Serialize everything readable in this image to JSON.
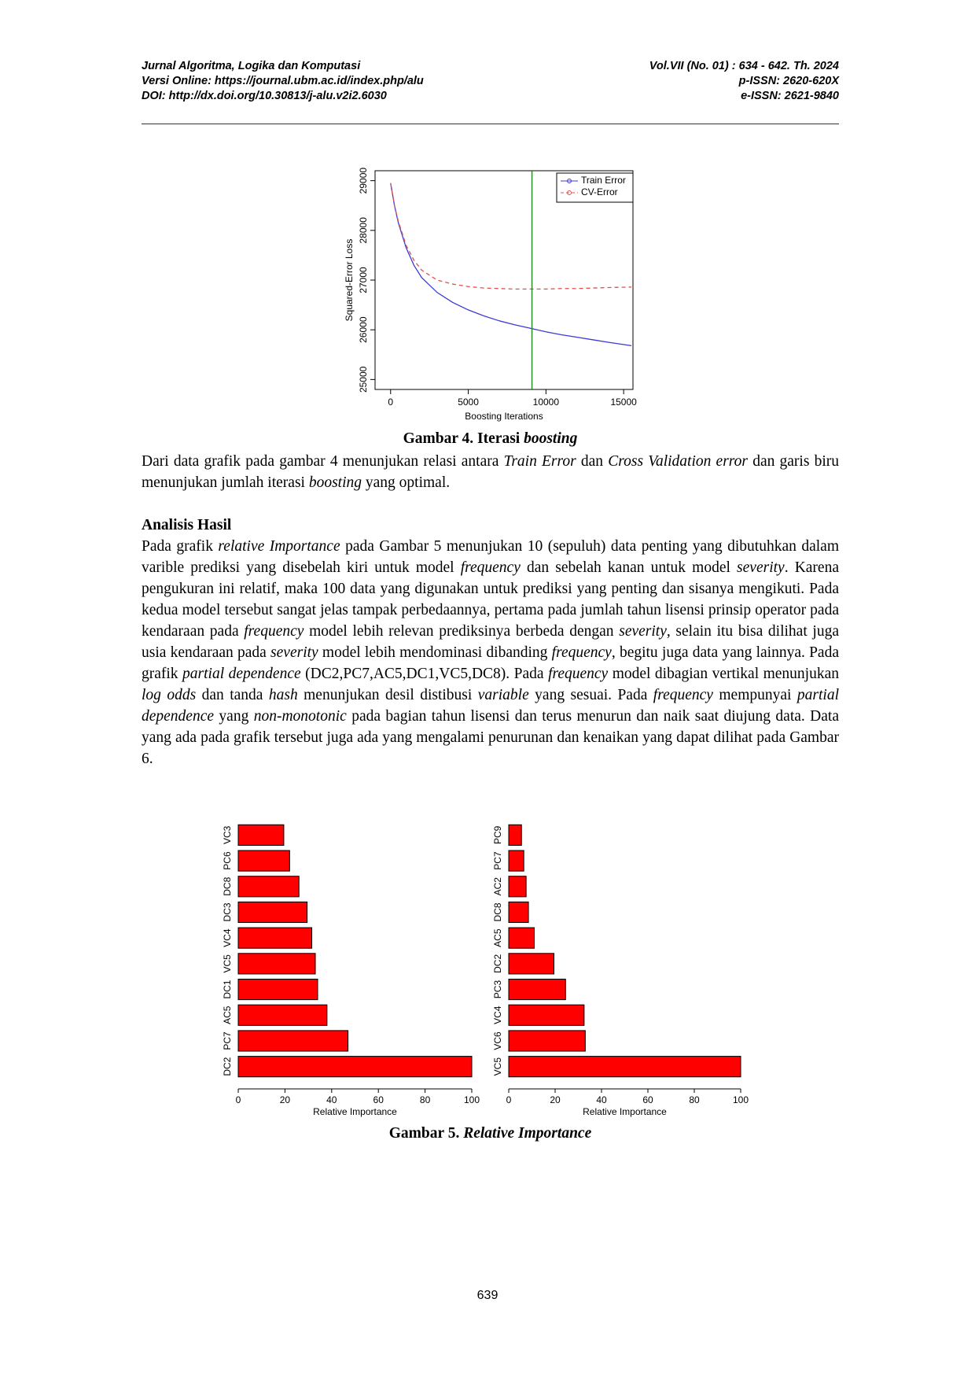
{
  "header": {
    "left": [
      "Jurnal Algoritma, Logika dan Komputasi",
      "Versi Online: https://journal.ubm.ac.id/index.php/alu",
      "DOI: http://dx.doi.org/10.30813/j-alu.v2i2.6030"
    ],
    "right": [
      "Vol.VII (No. 01) : 634 - 642. Th. 2024",
      "p-ISSN: 2620-620X",
      "e-ISSN: 2621-9840"
    ]
  },
  "captions": [
    [
      "Gambar 4. Iterasi ",
      {
        "italic": "boosting"
      }
    ],
    [
      "Gambar 5. ",
      {
        "italic": "Relative Importance"
      }
    ]
  ],
  "heading": "Analisis Hasil",
  "paragraphs": [
    [
      "Dari data grafik pada gambar 4 menunjukan relasi antara ",
      {
        "italic": "Train Error"
      },
      " dan ",
      {
        "italic": "Cross Validation error"
      },
      " dan garis biru menunjukan jumlah iterasi ",
      {
        "italic": "boosting"
      },
      " yang optimal."
    ],
    [
      "Pada grafik ",
      {
        "italic": "relative Importance"
      },
      " pada Gambar 5 menunjukan 10 (sepuluh) data penting yang dibutuhkan dalam varible prediksi yang disebelah kiri untuk model ",
      {
        "italic": "frequency"
      },
      " dan sebelah kanan untuk model ",
      {
        "italic": "severity"
      },
      ". Karena pengukuran ini relatif, maka 100 data yang digunakan untuk prediksi yang penting dan sisanya mengikuti. Pada kedua model tersebut sangat jelas tampak perbedaannya, pertama pada jumlah tahun lisensi prinsip operator pada kendaraan pada ",
      {
        "italic": "frequency"
      },
      " model lebih relevan prediksinya berbeda dengan ",
      {
        "italic": "severity"
      },
      ", selain itu bisa dilihat juga usia kendaraan pada ",
      {
        "italic": "severity"
      },
      " model lebih mendominasi dibanding ",
      {
        "italic": "frequency"
      },
      ", begitu juga data yang lainnya. Pada grafik ",
      {
        "italic": "partial dependence"
      },
      " (DC2,PC7,AC5,DC1,VC5,DC8). Pada ",
      {
        "italic": "frequency"
      },
      " model dibagian vertikal menunjukan ",
      {
        "italic": "log odds"
      },
      " dan tanda ",
      {
        "italic": "hash"
      },
      " menunjukan desil distibusi ",
      {
        "italic": "variable"
      },
      " yang sesuai. Pada ",
      {
        "italic": "frequency"
      },
      " mempunyai ",
      {
        "italic": "partial dependence"
      },
      " yang ",
      {
        "italic": "non-monotonic"
      },
      " pada bagian tahun lisensi dan terus menurun dan naik saat diujung data. Data yang ada pada grafik tersebut juga ada yang mengalami penurunan dan kenaikan yang dapat dilihat pada Gambar 6."
    ]
  ],
  "page_number": "639",
  "chart_data": [
    {
      "type": "line",
      "x_label": "Boosting Iterations",
      "y_label": "Squared-Error Loss",
      "x": [
        0,
        250,
        500,
        1000,
        1500,
        2000,
        3000,
        4000,
        5000,
        6000,
        7000,
        8000,
        9000,
        10000,
        11000,
        12000,
        13000,
        14000,
        15500
      ],
      "series": [
        {
          "name": "Train Error",
          "color": "#3b3bd6",
          "line_style": "solid",
          "values": [
            28950,
            28500,
            28150,
            27650,
            27300,
            27050,
            26750,
            26550,
            26400,
            26280,
            26180,
            26100,
            26030,
            25960,
            25900,
            25850,
            25800,
            25750,
            25680
          ]
        },
        {
          "name": "CV-Error",
          "color": "#e05050",
          "line_style": "dashed",
          "values": [
            28950,
            28500,
            28180,
            27700,
            27400,
            27200,
            27000,
            26920,
            26870,
            26840,
            26830,
            26820,
            26820,
            26820,
            26830,
            26830,
            26840,
            26850,
            26860
          ]
        }
      ],
      "xlim": [
        -1000,
        15600
      ],
      "ylim": [
        24800,
        29200
      ],
      "xticks": [
        0,
        5000,
        10000,
        15000
      ],
      "yticks": [
        25000,
        26000,
        27000,
        28000,
        29000
      ],
      "vline": 9100,
      "vline_color": "#2a8a2a",
      "legend": "top-right"
    },
    {
      "type": "barh",
      "x_label": "Relative Importance",
      "categories": [
        "DC2",
        "PC7",
        "AC5",
        "DC1",
        "VC5",
        "VC4",
        "DC3",
        "DC8",
        "PC6",
        "VC3"
      ],
      "values": [
        100,
        47,
        38,
        34,
        33,
        31.5,
        29.5,
        26,
        22,
        19.5
      ],
      "color": "#ff0000",
      "xlim": [
        0,
        100
      ],
      "xticks": [
        0,
        20,
        40,
        60,
        80,
        100
      ]
    },
    {
      "type": "barh",
      "x_label": "Relative Importance",
      "categories": [
        "VC5",
        "VC6",
        "VC4",
        "PC3",
        "DC2",
        "AC5",
        "DC8",
        "AC2",
        "PC7",
        "PC9"
      ],
      "values": [
        100,
        33,
        32.5,
        24.5,
        19.5,
        11,
        8.5,
        7.5,
        6.5,
        5.5
      ],
      "color": "#ff0000",
      "xlim": [
        0,
        100
      ],
      "xticks": [
        0,
        20,
        40,
        60,
        80,
        100
      ]
    }
  ]
}
